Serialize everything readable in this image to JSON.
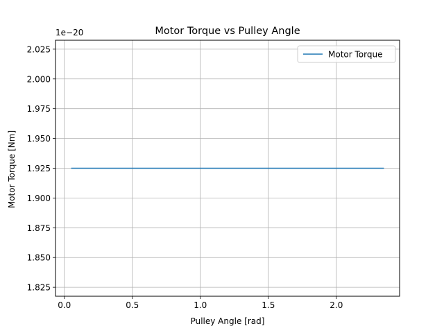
{
  "chart_data": {
    "type": "line",
    "title": "Motor Torque vs Pulley Angle",
    "xlabel": "Pulley Angle [rad]",
    "ylabel": "Motor Torque [Nm]",
    "y_offset_text": "1e−20",
    "xlim": [
      -0.065,
      2.465
    ],
    "ylim": [
      1.8175,
      2.0325
    ],
    "xticks": [
      0.0,
      0.5,
      1.0,
      1.5,
      2.0
    ],
    "xtick_labels": [
      "0.0",
      "0.5",
      "1.0",
      "1.5",
      "2.0"
    ],
    "yticks": [
      1.825,
      1.85,
      1.875,
      1.9,
      1.925,
      1.95,
      1.975,
      2.0,
      2.025
    ],
    "ytick_labels": [
      "1.825",
      "1.850",
      "1.875",
      "1.900",
      "1.925",
      "1.950",
      "1.975",
      "2.000",
      "2.025"
    ],
    "grid": true,
    "legend_position": "top-right",
    "series": [
      {
        "name": "Motor Torque",
        "color": "#1f77b4",
        "x": [
          0.05,
          2.35
        ],
        "y": [
          1.925,
          1.925
        ]
      }
    ]
  }
}
